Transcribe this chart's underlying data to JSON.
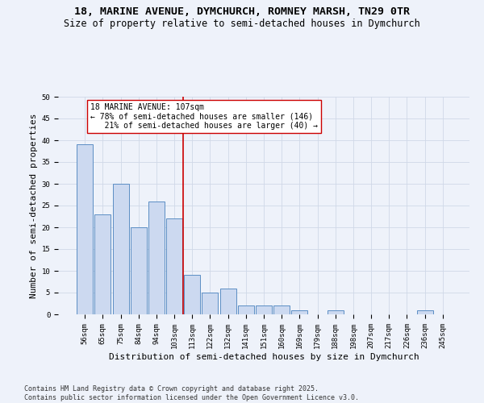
{
  "title_line1": "18, MARINE AVENUE, DYMCHURCH, ROMNEY MARSH, TN29 0TR",
  "title_line2": "Size of property relative to semi-detached houses in Dymchurch",
  "xlabel": "Distribution of semi-detached houses by size in Dymchurch",
  "ylabel": "Number of semi-detached properties",
  "categories": [
    "56sqm",
    "65sqm",
    "75sqm",
    "84sqm",
    "94sqm",
    "103sqm",
    "113sqm",
    "122sqm",
    "132sqm",
    "141sqm",
    "151sqm",
    "160sqm",
    "169sqm",
    "179sqm",
    "188sqm",
    "198sqm",
    "207sqm",
    "217sqm",
    "226sqm",
    "236sqm",
    "245sqm"
  ],
  "values": [
    39,
    23,
    30,
    20,
    26,
    22,
    9,
    5,
    6,
    2,
    2,
    2,
    1,
    0,
    1,
    0,
    0,
    0,
    0,
    1,
    0
  ],
  "bar_color": "#ccd9f0",
  "bar_edge_color": "#5b8ec4",
  "ref_line_x": 5.5,
  "ref_line_color": "#cc0000",
  "annotation_line1": "18 MARINE AVENUE: 107sqm",
  "annotation_line2": "← 78% of semi-detached houses are smaller (146)",
  "annotation_line3": "   21% of semi-detached houses are larger (40) →",
  "annotation_box_color": "#ffffff",
  "annotation_box_edge_color": "#cc0000",
  "ylim": [
    0,
    50
  ],
  "yticks": [
    0,
    5,
    10,
    15,
    20,
    25,
    30,
    35,
    40,
    45,
    50
  ],
  "grid_color": "#d0d8e8",
  "background_color": "#eef2fa",
  "footer_text": "Contains HM Land Registry data © Crown copyright and database right 2025.\nContains public sector information licensed under the Open Government Licence v3.0.",
  "title_fontsize": 9.5,
  "subtitle_fontsize": 8.5,
  "axis_label_fontsize": 8,
  "tick_fontsize": 6.5,
  "annotation_fontsize": 7,
  "footer_fontsize": 6
}
